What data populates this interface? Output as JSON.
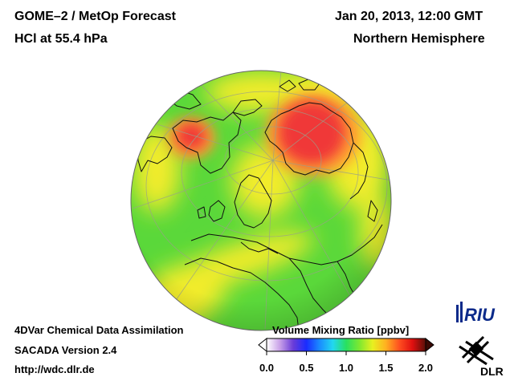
{
  "header": {
    "title_line1": "GOME–2 / MetOp Forecast",
    "title_line2": "HCl at 55.4 hPa",
    "date": "Jan 20, 2013, 12:00 GMT",
    "region": "Northern Hemisphere"
  },
  "footer": {
    "line1": "4DVar Chemical Data Assimilation",
    "line2": "SACADA Version 2.4",
    "url": "http://wdc.dlr.de"
  },
  "colorbar": {
    "title": "Volume Mixing Ratio [ppbv]",
    "min": 0.0,
    "max": 2.0,
    "ticks": [
      "0.0",
      "0.5",
      "1.0",
      "1.5",
      "2.0"
    ],
    "stops": [
      "#ffffff",
      "#c8a0e8",
      "#6a3cd8",
      "#1a2cff",
      "#1a8cff",
      "#22d8f0",
      "#28e060",
      "#7ee830",
      "#e8f020",
      "#ffb020",
      "#ff5020",
      "#e01010",
      "#5a1008"
    ]
  },
  "map": {
    "projection": "orthographic",
    "hemisphere": "northern",
    "field": "HCl",
    "palette": {
      "green": "#5ad83a",
      "yellow": "#f2ec2c",
      "orange": "#ffa030",
      "red": "#f03838"
    }
  },
  "logos": {
    "riu": "RIU",
    "dlr": "DLR"
  }
}
